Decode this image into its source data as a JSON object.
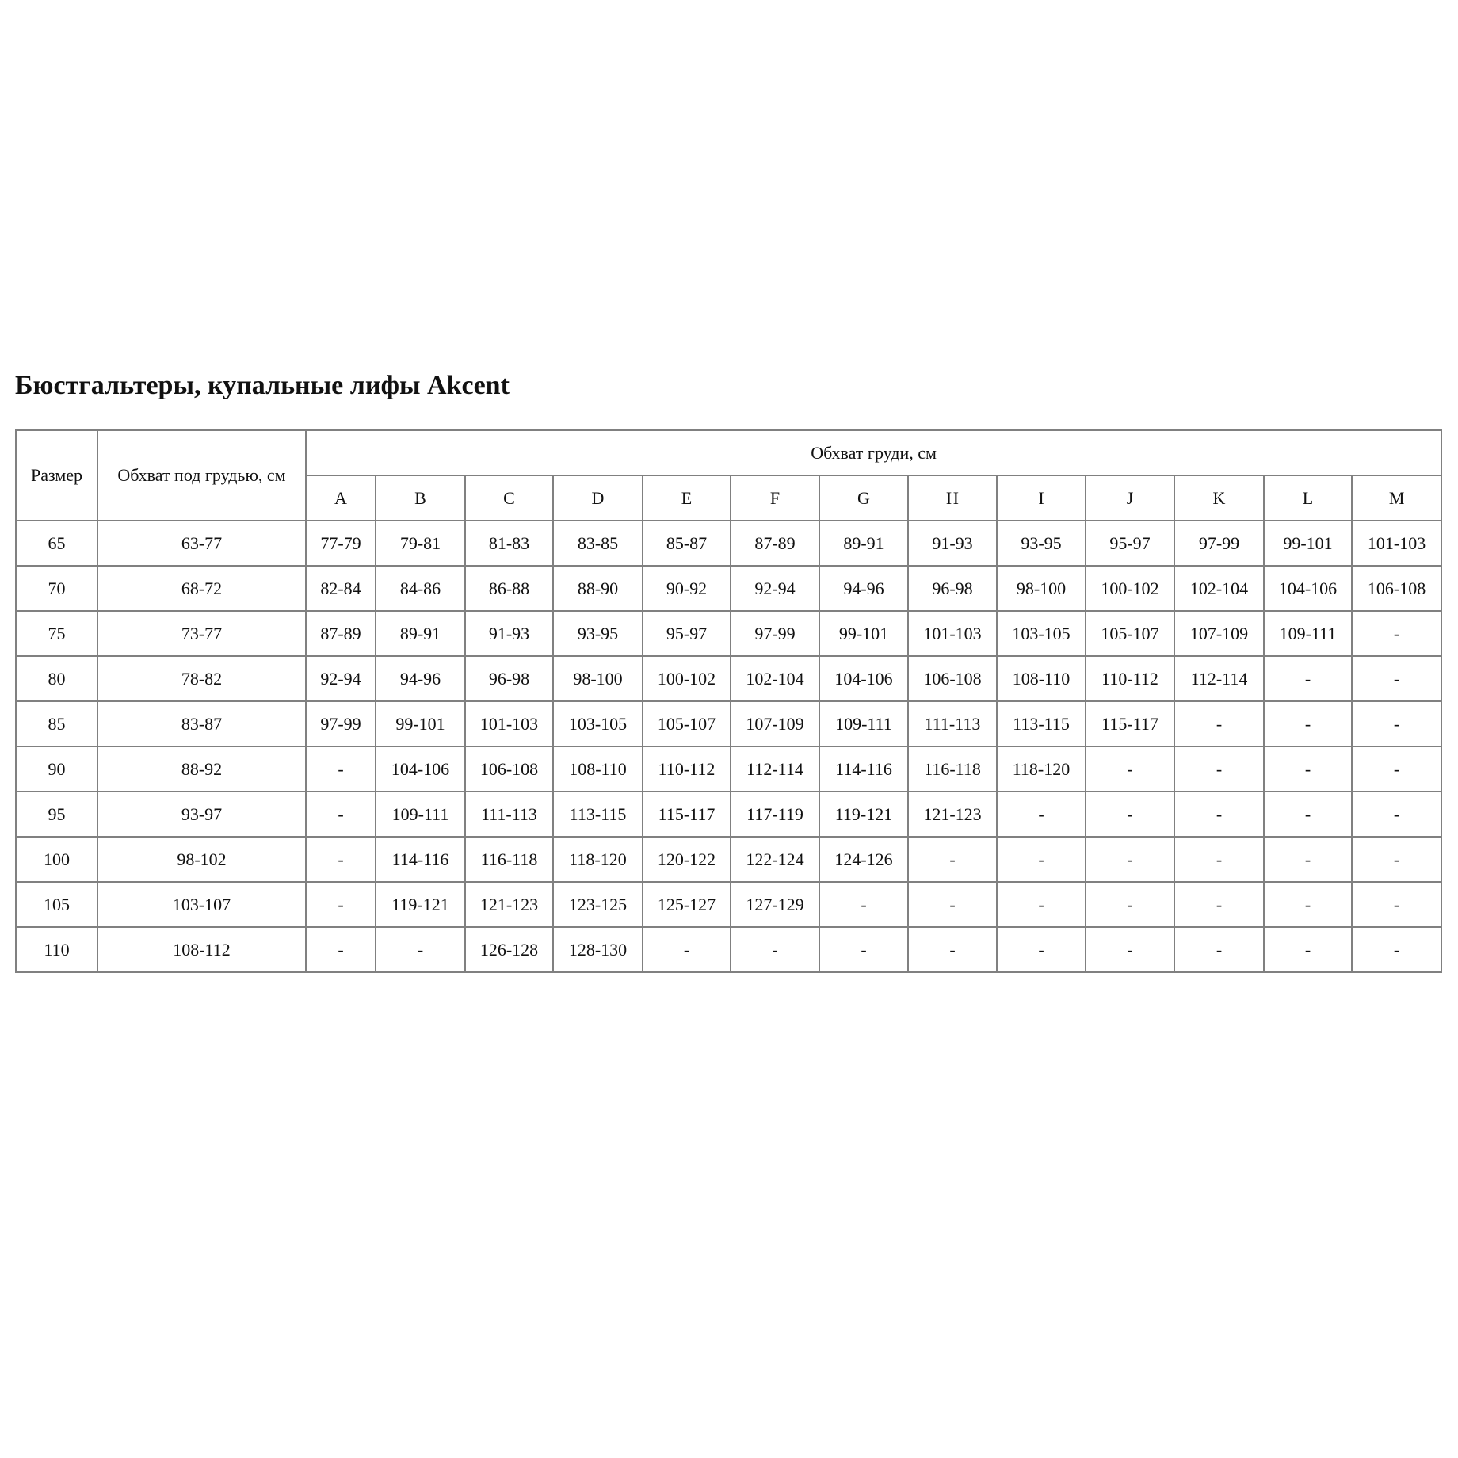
{
  "title": "Бюстгальтеры, купальные лифы Akcent",
  "table": {
    "size_header": "Размер",
    "underbust_header": "Обхват под грудью, см",
    "bust_header": "Обхват груди, см",
    "cups": [
      "A",
      "B",
      "C",
      "D",
      "E",
      "F",
      "G",
      "H",
      "I",
      "J",
      "K",
      "L",
      "M"
    ],
    "rows": [
      {
        "size": "65",
        "underbust": "63-77",
        "values": [
          "77-79",
          "79-81",
          "81-83",
          "83-85",
          "85-87",
          "87-89",
          "89-91",
          "91-93",
          "93-95",
          "95-97",
          "97-99",
          "99-101",
          "101-103"
        ]
      },
      {
        "size": "70",
        "underbust": "68-72",
        "values": [
          "82-84",
          "84-86",
          "86-88",
          "88-90",
          "90-92",
          "92-94",
          "94-96",
          "96-98",
          "98-100",
          "100-102",
          "102-104",
          "104-106",
          "106-108"
        ]
      },
      {
        "size": "75",
        "underbust": "73-77",
        "values": [
          "87-89",
          "89-91",
          "91-93",
          "93-95",
          "95-97",
          "97-99",
          "99-101",
          "101-103",
          "103-105",
          "105-107",
          "107-109",
          "109-111",
          "-"
        ]
      },
      {
        "size": "80",
        "underbust": "78-82",
        "values": [
          "92-94",
          "94-96",
          "96-98",
          "98-100",
          "100-102",
          "102-104",
          "104-106",
          "106-108",
          "108-110",
          "110-112",
          "112-114",
          "-",
          "-"
        ]
      },
      {
        "size": "85",
        "underbust": "83-87",
        "values": [
          "97-99",
          "99-101",
          "101-103",
          "103-105",
          "105-107",
          "107-109",
          "109-111",
          "111-113",
          "113-115",
          "115-117",
          "-",
          "-",
          "-"
        ]
      },
      {
        "size": "90",
        "underbust": "88-92",
        "values": [
          "-",
          "104-106",
          "106-108",
          "108-110",
          "110-112",
          "112-114",
          "114-116",
          "116-118",
          "118-120",
          "-",
          "-",
          "-",
          "-"
        ]
      },
      {
        "size": "95",
        "underbust": "93-97",
        "values": [
          "-",
          "109-111",
          "111-113",
          "113-115",
          "115-117",
          "117-119",
          "119-121",
          "121-123",
          "-",
          "-",
          "-",
          "-",
          "-"
        ]
      },
      {
        "size": "100",
        "underbust": "98-102",
        "values": [
          "-",
          "114-116",
          "116-118",
          "118-120",
          "120-122",
          "122-124",
          "124-126",
          "-",
          "-",
          "-",
          "-",
          "-",
          "-"
        ]
      },
      {
        "size": "105",
        "underbust": "103-107",
        "values": [
          "-",
          "119-121",
          "121-123",
          "123-125",
          "125-127",
          "127-129",
          "-",
          "-",
          "-",
          "-",
          "-",
          "-",
          "-"
        ]
      },
      {
        "size": "110",
        "underbust": "108-112",
        "values": [
          "-",
          "-",
          "126-128",
          "128-130",
          "-",
          "-",
          "-",
          "-",
          "-",
          "-",
          "-",
          "-",
          "-"
        ]
      }
    ]
  }
}
